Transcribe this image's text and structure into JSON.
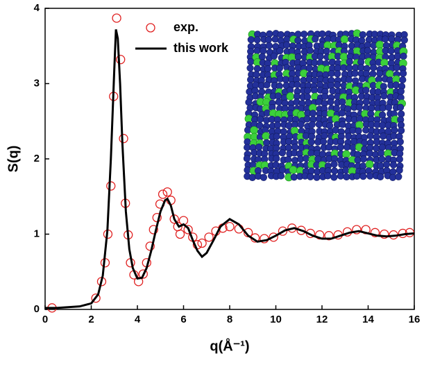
{
  "chart_data": {
    "type": "line",
    "x_label": "q(Å⁻¹)",
    "y_label": "S(q)",
    "xlim": [
      0,
      16
    ],
    "xticks": [
      0,
      2,
      4,
      6,
      8,
      10,
      12,
      14,
      16
    ],
    "ylim": [
      0,
      4
    ],
    "yticks": [
      0,
      1,
      2,
      3,
      4
    ],
    "legend": "upper center",
    "series": [
      {
        "name": "exp.",
        "color": "#e02020",
        "style": "open-circle",
        "x": [
          0.3,
          2.2,
          2.45,
          2.6,
          2.72,
          2.85,
          2.97,
          3.1,
          3.27,
          3.4,
          3.48,
          3.6,
          3.7,
          3.85,
          4.05,
          4.25,
          4.4,
          4.55,
          4.7,
          4.85,
          4.98,
          5.1,
          5.3,
          5.45,
          5.6,
          5.75,
          5.85,
          6.0,
          6.2,
          6.4,
          6.6,
          6.8,
          7.1,
          7.4,
          7.7,
          8.0,
          8.4,
          8.8,
          9.1,
          9.5,
          9.9,
          10.3,
          10.7,
          11.1,
          11.5,
          11.9,
          12.3,
          12.7,
          13.1,
          13.5,
          13.9,
          14.3,
          14.7,
          15.1,
          15.5,
          15.8
        ],
        "values": [
          0.02,
          0.15,
          0.37,
          0.62,
          1.0,
          1.64,
          2.83,
          3.87,
          3.32,
          2.27,
          1.41,
          0.99,
          0.62,
          0.46,
          0.37,
          0.47,
          0.62,
          0.84,
          1.06,
          1.22,
          1.4,
          1.53,
          1.56,
          1.45,
          1.2,
          1.1,
          1.0,
          1.18,
          1.06,
          0.96,
          0.86,
          0.88,
          0.96,
          1.04,
          1.08,
          1.1,
          1.07,
          1.02,
          0.95,
          0.94,
          0.96,
          1.04,
          1.08,
          1.05,
          1.01,
          0.99,
          0.98,
          0.99,
          1.03,
          1.06,
          1.06,
          1.02,
          1.0,
          0.99,
          1.01,
          1.02
        ]
      },
      {
        "name": "this work",
        "color": "#000000",
        "style": "line",
        "x": [
          0,
          0.5,
          1,
          1.5,
          2.0,
          2.3,
          2.5,
          2.7,
          2.85,
          3.0,
          3.07,
          3.15,
          3.25,
          3.35,
          3.5,
          3.65,
          3.8,
          4.0,
          4.2,
          4.4,
          4.6,
          4.8,
          5.0,
          5.2,
          5.3,
          5.45,
          5.6,
          5.8,
          6.0,
          6.2,
          6.4,
          6.6,
          6.8,
          7.0,
          7.3,
          7.6,
          8.0,
          8.4,
          8.8,
          9.2,
          9.6,
          10.0,
          10.4,
          10.8,
          11.2,
          11.6,
          12.0,
          12.4,
          12.8,
          13.2,
          13.6,
          14.0,
          14.4,
          14.8,
          15.2,
          15.6,
          16.0
        ],
        "values": [
          0.02,
          0.02,
          0.03,
          0.04,
          0.08,
          0.2,
          0.45,
          1.05,
          2.0,
          3.2,
          3.72,
          3.6,
          3.0,
          2.2,
          1.3,
          0.8,
          0.55,
          0.41,
          0.42,
          0.55,
          0.78,
          1.05,
          1.3,
          1.45,
          1.47,
          1.38,
          1.2,
          1.1,
          1.13,
          1.08,
          0.92,
          0.78,
          0.7,
          0.75,
          0.92,
          1.1,
          1.2,
          1.13,
          0.98,
          0.9,
          0.92,
          0.98,
          1.05,
          1.08,
          1.04,
          0.98,
          0.94,
          0.94,
          0.98,
          1.02,
          1.04,
          1.01,
          0.98,
          0.97,
          0.98,
          1.0,
          1.01
        ]
      }
    ]
  }
}
